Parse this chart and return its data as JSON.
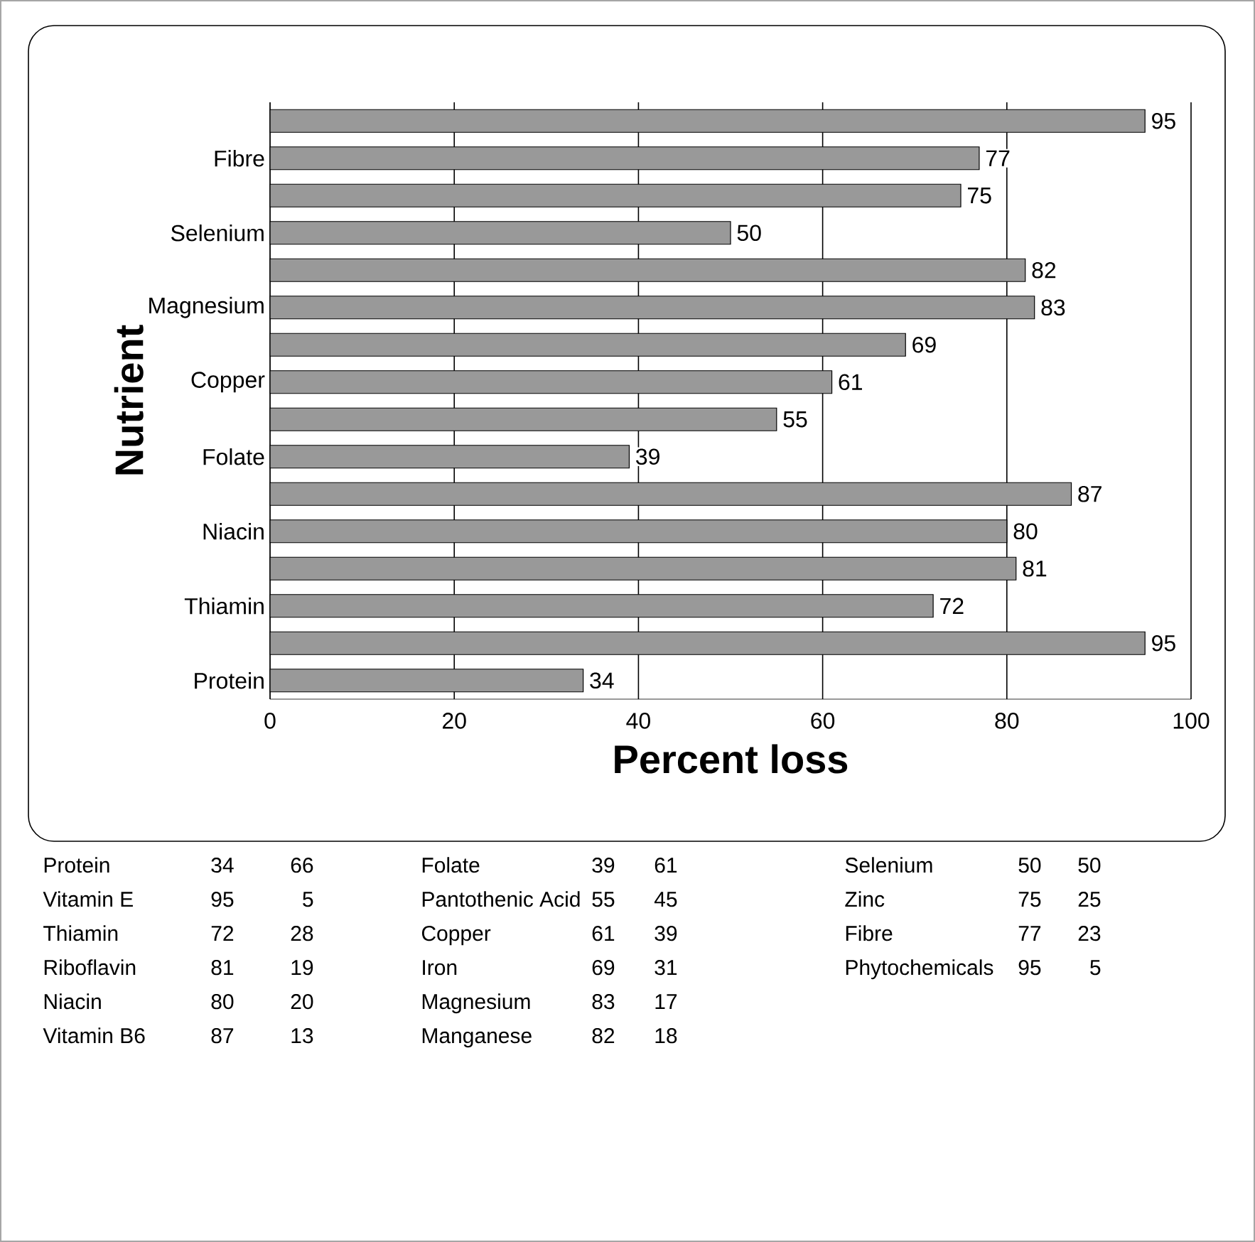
{
  "chart_data": {
    "type": "bar",
    "orientation": "horizontal",
    "xlabel": "Percent loss",
    "ylabel": "Nutrient",
    "categories": [
      null,
      "Fibre",
      null,
      "Selenium",
      null,
      "Magnesium",
      null,
      "Copper",
      null,
      "Folate",
      null,
      "Niacin",
      null,
      "Thiamin",
      null,
      "Protein"
    ],
    "values": [
      95,
      77,
      75,
      50,
      82,
      83,
      69,
      61,
      55,
      39,
      87,
      80,
      81,
      72,
      95,
      34
    ],
    "color": "#999999",
    "data_labels": true,
    "xlim": [
      0,
      100
    ],
    "xticks": [
      0,
      20,
      40,
      60,
      80,
      100
    ],
    "grid": "x",
    "annotations": [
      "Protein",
      "34",
      "66",
      "Vitamin E",
      "95",
      "5",
      "Thiamin",
      "72",
      "28",
      "Riboflavin",
      "81",
      "19",
      "Niacin",
      "80",
      "20",
      "Vitamin B6",
      "87",
      "13",
      "Folate",
      "39",
      "61",
      "Pantothenic Acid",
      "55",
      "45",
      "Copper",
      "61",
      "39",
      "Iron",
      "69",
      "31",
      "Magnesium",
      "83",
      "17",
      "Manganese",
      "82",
      "18",
      "Selenium",
      "50",
      "50",
      "Zinc",
      "75",
      "25",
      "Fibre",
      "77",
      "23",
      "Phytochemicals",
      "95",
      "5"
    ]
  }
}
